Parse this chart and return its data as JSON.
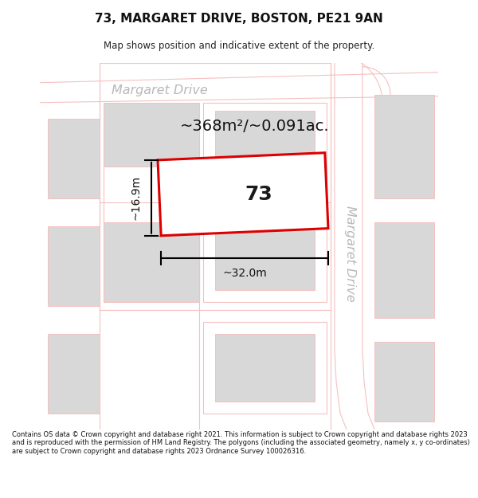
{
  "title": "73, MARGARET DRIVE, BOSTON, PE21 9AN",
  "subtitle": "Map shows position and indicative extent of the property.",
  "footer": "Contains OS data © Crown copyright and database right 2021. This information is subject to Crown copyright and database rights 2023 and is reproduced with the permission of HM Land Registry. The polygons (including the associated geometry, namely x, y co-ordinates) are subject to Crown copyright and database rights 2023 Ordnance Survey 100026316.",
  "bg_color": "#ffffff",
  "map_bg": "#ffffff",
  "plot_color": "#dd0000",
  "building_fill": "#d8d8d8",
  "road_line_color": "#f5c0c0",
  "road_text_color": "#b8b8b8",
  "annotation_area": "~368m²/~0.091ac.",
  "annotation_width": "~32.0m",
  "annotation_height": "~16.9m",
  "plot_label": "73"
}
